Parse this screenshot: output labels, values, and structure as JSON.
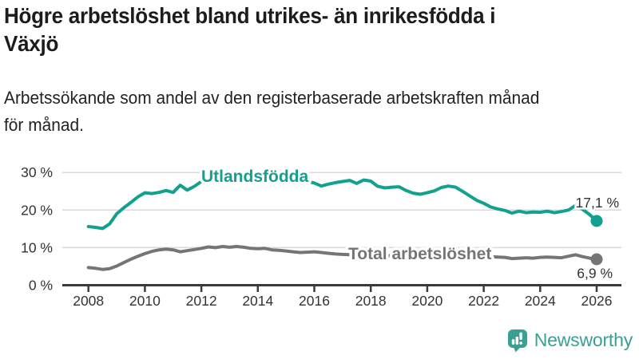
{
  "header": {
    "title": "Högre arbetslöshet bland utrikes- än inrikesfödda i Växjö",
    "title_lines": [
      "Högre arbetslöshet bland utrikes- än inrikesfödda i",
      "Växjö"
    ],
    "subtitle": "Arbetssökande som andel av den registerbaserade arbetskraften månad för månad.",
    "subtitle_lines": [
      "Arbetssökande som andel av den registerbaserade arbetskraften månad",
      "för månad."
    ]
  },
  "footer": {
    "brand": "Newsworthy",
    "brand_color": "#3aa093"
  },
  "chart_data": {
    "type": "line",
    "title": "Högre arbetslöshet bland utrikes- än inrikesfödda i Växjö",
    "subtitle": "Arbetssökande som andel av den registerbaserade arbetskraften månad för månad.",
    "xlabel": "",
    "ylabel": "",
    "grid": "horizontal",
    "legend": "inline-labels",
    "xlim": [
      2007.1,
      2026.9
    ],
    "ylim": [
      0,
      32
    ],
    "xticks": [
      2008,
      2010,
      2012,
      2014,
      2016,
      2018,
      2020,
      2022,
      2024,
      2026
    ],
    "yticks": {
      "values": [
        0,
        10,
        20,
        30
      ],
      "labels": [
        "0 %",
        "10 %",
        "20 %",
        "30 %"
      ]
    },
    "x": [
      2008,
      2008.25,
      2008.5,
      2008.75,
      2009,
      2009.25,
      2009.5,
      2009.75,
      2010,
      2010.25,
      2010.5,
      2010.75,
      2011,
      2011.25,
      2011.5,
      2011.75,
      2012,
      2012.25,
      2012.5,
      2012.75,
      2013,
      2013.25,
      2013.5,
      2013.75,
      2014,
      2014.25,
      2014.5,
      2014.75,
      2015,
      2015.25,
      2015.5,
      2015.75,
      2016,
      2016.25,
      2016.5,
      2016.75,
      2017,
      2017.25,
      2017.5,
      2017.75,
      2018,
      2018.25,
      2018.5,
      2018.75,
      2019,
      2019.25,
      2019.5,
      2019.75,
      2020,
      2020.25,
      2020.5,
      2020.75,
      2021,
      2021.25,
      2021.5,
      2021.75,
      2022,
      2022.25,
      2022.5,
      2022.75,
      2023,
      2023.25,
      2023.5,
      2023.75,
      2024,
      2024.25,
      2024.5,
      2024.75,
      2025,
      2025.25,
      2025.5,
      2025.75,
      2026
    ],
    "series": [
      {
        "name": "Utlandsfödda",
        "color": "#12a08f",
        "end_label": "17,1 %",
        "end_value": 17.1,
        "values": [
          15.6,
          15.4,
          15.1,
          16.3,
          19.0,
          20.6,
          22.0,
          23.5,
          24.6,
          24.4,
          24.7,
          25.2,
          24.7,
          26.6,
          25.3,
          26.3,
          27.6,
          27.9,
          28.2,
          28.0,
          28.3,
          28.5,
          28.2,
          28.1,
          28.3,
          28.4,
          28.1,
          27.9,
          28.1,
          28.3,
          27.9,
          27.6,
          27.2,
          26.4,
          26.9,
          27.3,
          27.6,
          27.9,
          27.1,
          28.0,
          27.7,
          26.3,
          25.9,
          26.1,
          26.2,
          25.2,
          24.5,
          24.2,
          24.6,
          25.1,
          26.0,
          26.4,
          26.1,
          25.0,
          23.8,
          22.6,
          21.8,
          20.8,
          20.3,
          19.9,
          19.2,
          19.7,
          19.3,
          19.5,
          19.4,
          19.7,
          19.3,
          19.6,
          20.0,
          21.2,
          20.2,
          18.8,
          17.1
        ]
      },
      {
        "name": "Total arbetslöshet",
        "color": "#757575",
        "end_label": "6,9 %",
        "end_value": 6.9,
        "values": [
          4.7,
          4.5,
          4.2,
          4.4,
          5.1,
          6.0,
          6.9,
          7.7,
          8.4,
          9.0,
          9.4,
          9.6,
          9.4,
          8.9,
          9.2,
          9.5,
          9.8,
          10.2,
          10.0,
          10.3,
          10.1,
          10.3,
          10.1,
          9.8,
          9.7,
          9.8,
          9.4,
          9.3,
          9.1,
          8.9,
          8.7,
          8.8,
          8.9,
          8.7,
          8.5,
          8.3,
          8.2,
          8.1,
          8.4,
          8.2,
          8.1,
          8.0,
          7.9,
          7.8,
          7.8,
          7.7,
          7.6,
          7.7,
          8.0,
          9.0,
          9.3,
          9.1,
          8.8,
          8.5,
          8.2,
          8.0,
          7.8,
          7.6,
          7.5,
          7.4,
          7.1,
          7.2,
          7.3,
          7.2,
          7.4,
          7.5,
          7.4,
          7.3,
          7.7,
          8.1,
          7.6,
          7.2,
          6.9
        ]
      }
    ]
  }
}
